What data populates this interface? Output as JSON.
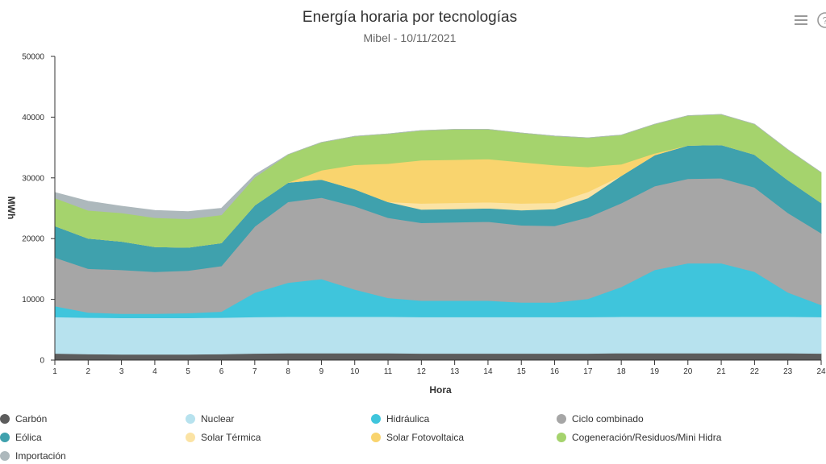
{
  "chart_data": {
    "type": "area",
    "stacked": true,
    "title": "Energía horaria por tecnologías",
    "subtitle": "Mibel - 10/11/2021",
    "xlabel": "Hora",
    "ylabel": "MWh",
    "ylim": [
      0,
      50000
    ],
    "yticks": [
      0,
      10000,
      20000,
      30000,
      40000,
      50000
    ],
    "categories": [
      "1",
      "2",
      "3",
      "4",
      "5",
      "6",
      "7",
      "8",
      "9",
      "10",
      "11",
      "12",
      "13",
      "14",
      "15",
      "16",
      "17",
      "18",
      "19",
      "20",
      "21",
      "22",
      "23",
      "24"
    ],
    "legend_position": "bottom",
    "series": [
      {
        "name": "Carbón",
        "color": "#5c5c5c",
        "values": [
          1100,
          1000,
          950,
          950,
          950,
          1000,
          1100,
          1150,
          1150,
          1150,
          1150,
          1100,
          1100,
          1100,
          1100,
          1100,
          1100,
          1150,
          1150,
          1150,
          1150,
          1150,
          1150,
          1100
        ]
      },
      {
        "name": "Nuclear",
        "color": "#b7e2ee",
        "values": [
          6000,
          6000,
          6000,
          6000,
          6000,
          6000,
          6000,
          6000,
          6000,
          6000,
          6000,
          6000,
          6000,
          6000,
          6000,
          6000,
          6000,
          6000,
          6000,
          6000,
          6000,
          6000,
          6000,
          6000
        ]
      },
      {
        "name": "Hidráulica",
        "color": "#3fc5dc",
        "values": [
          1800,
          850,
          700,
          700,
          800,
          1000,
          4000,
          5600,
          6200,
          4500,
          3100,
          2700,
          2700,
          2700,
          2400,
          2400,
          3000,
          4900,
          7700,
          8800,
          8800,
          7400,
          4000,
          2000
        ]
      },
      {
        "name": "Ciclo combinado",
        "color": "#a6a6a6",
        "values": [
          8000,
          7200,
          7200,
          6900,
          7000,
          7500,
          10900,
          13300,
          13400,
          13700,
          13200,
          12800,
          12900,
          13000,
          12700,
          12600,
          13400,
          13800,
          13800,
          13900,
          14000,
          13900,
          13100,
          11800
        ]
      },
      {
        "name": "Eólica",
        "color": "#3fa1ad",
        "values": [
          5200,
          5000,
          4700,
          4100,
          3800,
          3800,
          3500,
          3200,
          3000,
          2800,
          2600,
          2200,
          2200,
          2200,
          2500,
          2800,
          3200,
          4500,
          5100,
          5500,
          5500,
          5400,
          5400,
          5000
        ]
      },
      {
        "name": "Solar Térmica",
        "color": "#fbe3a4",
        "values": [
          0,
          0,
          0,
          0,
          0,
          0,
          0,
          0,
          0,
          0,
          0,
          1000,
          1000,
          1000,
          1100,
          1000,
          1000,
          0,
          0,
          0,
          0,
          0,
          0,
          0
        ]
      },
      {
        "name": "Solar Fotovoltaica",
        "color": "#f9d46e",
        "values": [
          0,
          0,
          0,
          0,
          0,
          0,
          0,
          0,
          1500,
          4000,
          6300,
          7100,
          7100,
          7100,
          6800,
          6200,
          4100,
          1900,
          300,
          0,
          0,
          0,
          0,
          0
        ]
      },
      {
        "name": "Cogeneración/Residuos/Mini Hidra",
        "color": "#a5d36d",
        "values": [
          4600,
          4600,
          4700,
          4800,
          4700,
          4600,
          4600,
          4600,
          4600,
          4700,
          4900,
          4900,
          5000,
          4900,
          4800,
          4800,
          4800,
          4800,
          4800,
          4900,
          5000,
          5000,
          5000,
          5000
        ]
      },
      {
        "name": "Importación",
        "color": "#adb8bc",
        "values": [
          900,
          1500,
          1100,
          1200,
          1200,
          1100,
          400,
          0,
          0,
          0,
          0,
          0,
          0,
          0,
          0,
          0,
          0,
          0,
          0,
          0,
          0,
          0,
          0,
          0
        ]
      }
    ]
  },
  "legend_order": [
    "Carbón",
    "Nuclear",
    "Hidráulica",
    "Ciclo combinado",
    "Eólica",
    "Solar Térmica",
    "Solar Fotovoltaica",
    "Cogeneración/Residuos/Mini Hidra",
    "Importación"
  ]
}
